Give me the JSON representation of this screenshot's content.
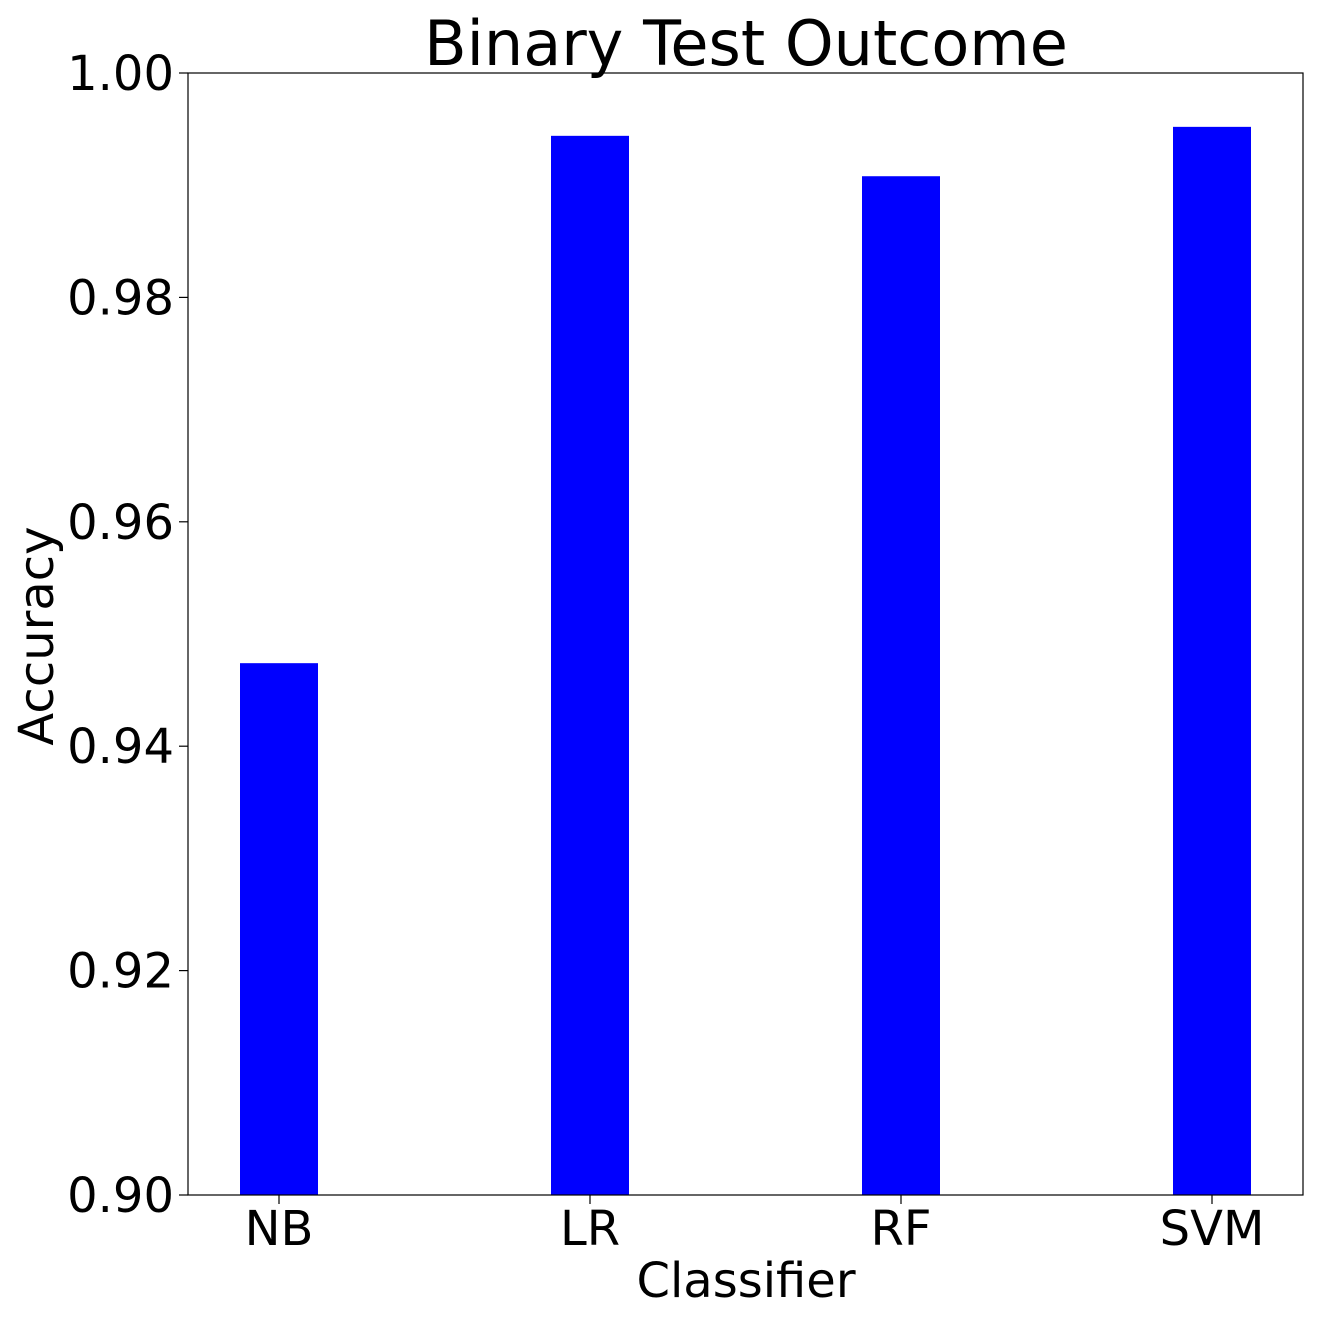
{
  "chart_data": {
    "type": "bar",
    "title": "Binary Test Outcome",
    "xlabel": "Classifier",
    "ylabel": "Accuracy",
    "categories": [
      "NB",
      "LR",
      "RF",
      "SVM"
    ],
    "values": [
      0.9474,
      0.9944,
      0.9908,
      0.9952
    ],
    "ylim": [
      0.9,
      1.0
    ],
    "yticks": [
      "0.90",
      "0.92",
      "0.94",
      "0.96",
      "0.98",
      "1.00"
    ],
    "bar_color": "#0000ff",
    "grid": false,
    "legend": "none"
  }
}
